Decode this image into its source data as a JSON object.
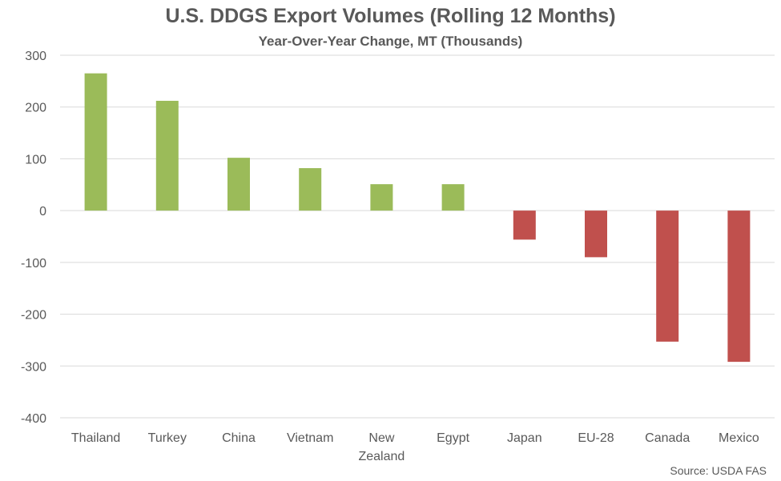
{
  "chart_data": {
    "type": "bar",
    "title": "U.S. DDGS Export Volumes (Rolling 12 Months)",
    "subtitle": "Year-Over-Year Change, MT (Thousands)",
    "categories": [
      "Thailand",
      "Turkey",
      "China",
      "Vietnam",
      "New Zealand",
      "Egypt",
      "Japan",
      "EU-28",
      "Canada",
      "Mexico"
    ],
    "values": [
      265,
      212,
      102,
      82,
      51,
      51,
      -56,
      -90,
      -253,
      -292
    ],
    "ylim": [
      -400,
      300
    ],
    "yticks": [
      300,
      200,
      100,
      0,
      -100,
      -200,
      -300,
      -400
    ],
    "grid": true,
    "legend": "none",
    "colors": {
      "positive": "#9BBB59",
      "negative": "#C0504D",
      "grid": "#D9D9D9",
      "text": "#595959"
    }
  },
  "source": "Source: USDA FAS"
}
